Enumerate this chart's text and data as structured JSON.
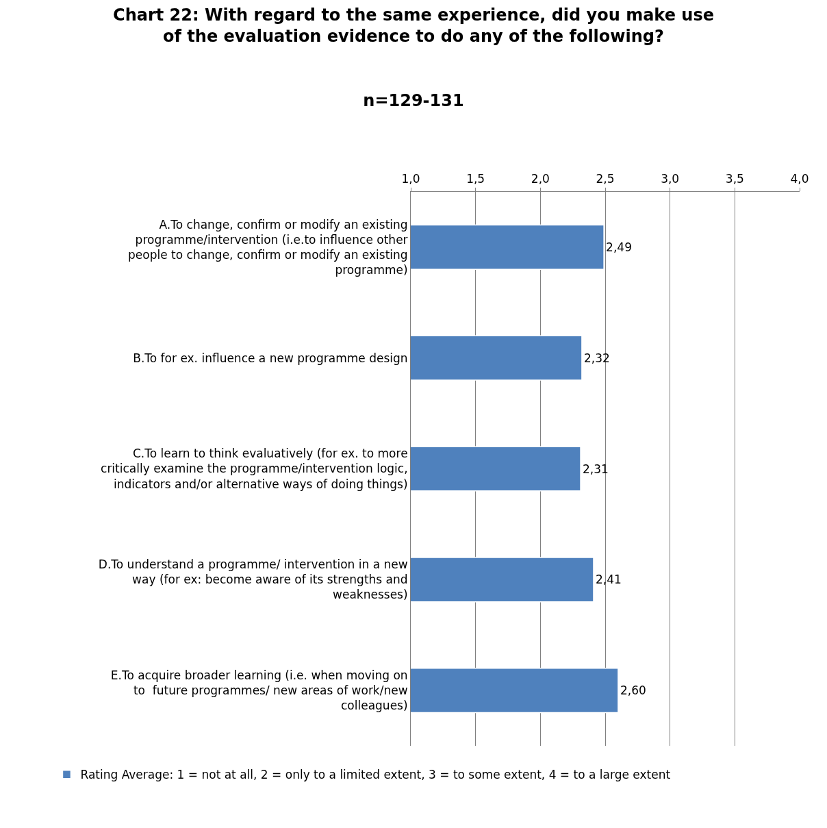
{
  "chart_data": {
    "type": "bar",
    "orientation": "horizontal",
    "title": "Chart 22: With regard to the same experience, did you make use of the evaluation evidence to do any of the following?",
    "subtitle": "n=129-131",
    "categories": [
      "A.To change, confirm or modify an existing programme/intervention (i.e.to influence other people to change, confirm or modify an existing programme)",
      "B.To for ex. influence a new programme design",
      "C.To learn to think evaluatively (for ex. to more critically examine the programme/intervention logic, indicators and/or alternative ways of doing things)",
      "D.To understand a programme/ intervention in a new way (for ex: become aware of its strengths and weaknesses)",
      "E.To acquire broader learning (i.e. when moving on to  future programmes/ new areas of work/new colleagues)"
    ],
    "series": [
      {
        "name": "Rating Average: 1 = not at all, 2 = only to a limited extent, 3 = to some extent, 4 = to a large extent",
        "color": "#4f81bd",
        "values": [
          2.49,
          2.32,
          2.31,
          2.41,
          2.6
        ],
        "value_labels": [
          "2,49",
          "2,32",
          "2,31",
          "2,41",
          "2,60"
        ]
      }
    ],
    "xlim": [
      1,
      4
    ],
    "xticks": [
      {
        "value": 1,
        "label": "1,0"
      },
      {
        "value": 1.5,
        "label": "1,5"
      },
      {
        "value": 2,
        "label": "2,0"
      },
      {
        "value": 2.5,
        "label": "2,5"
      },
      {
        "value": 3,
        "label": "3,0"
      },
      {
        "value": 3.5,
        "label": "3,5"
      },
      {
        "value": 4,
        "label": "4,0"
      }
    ],
    "grid": "x",
    "legend": "bottom"
  }
}
